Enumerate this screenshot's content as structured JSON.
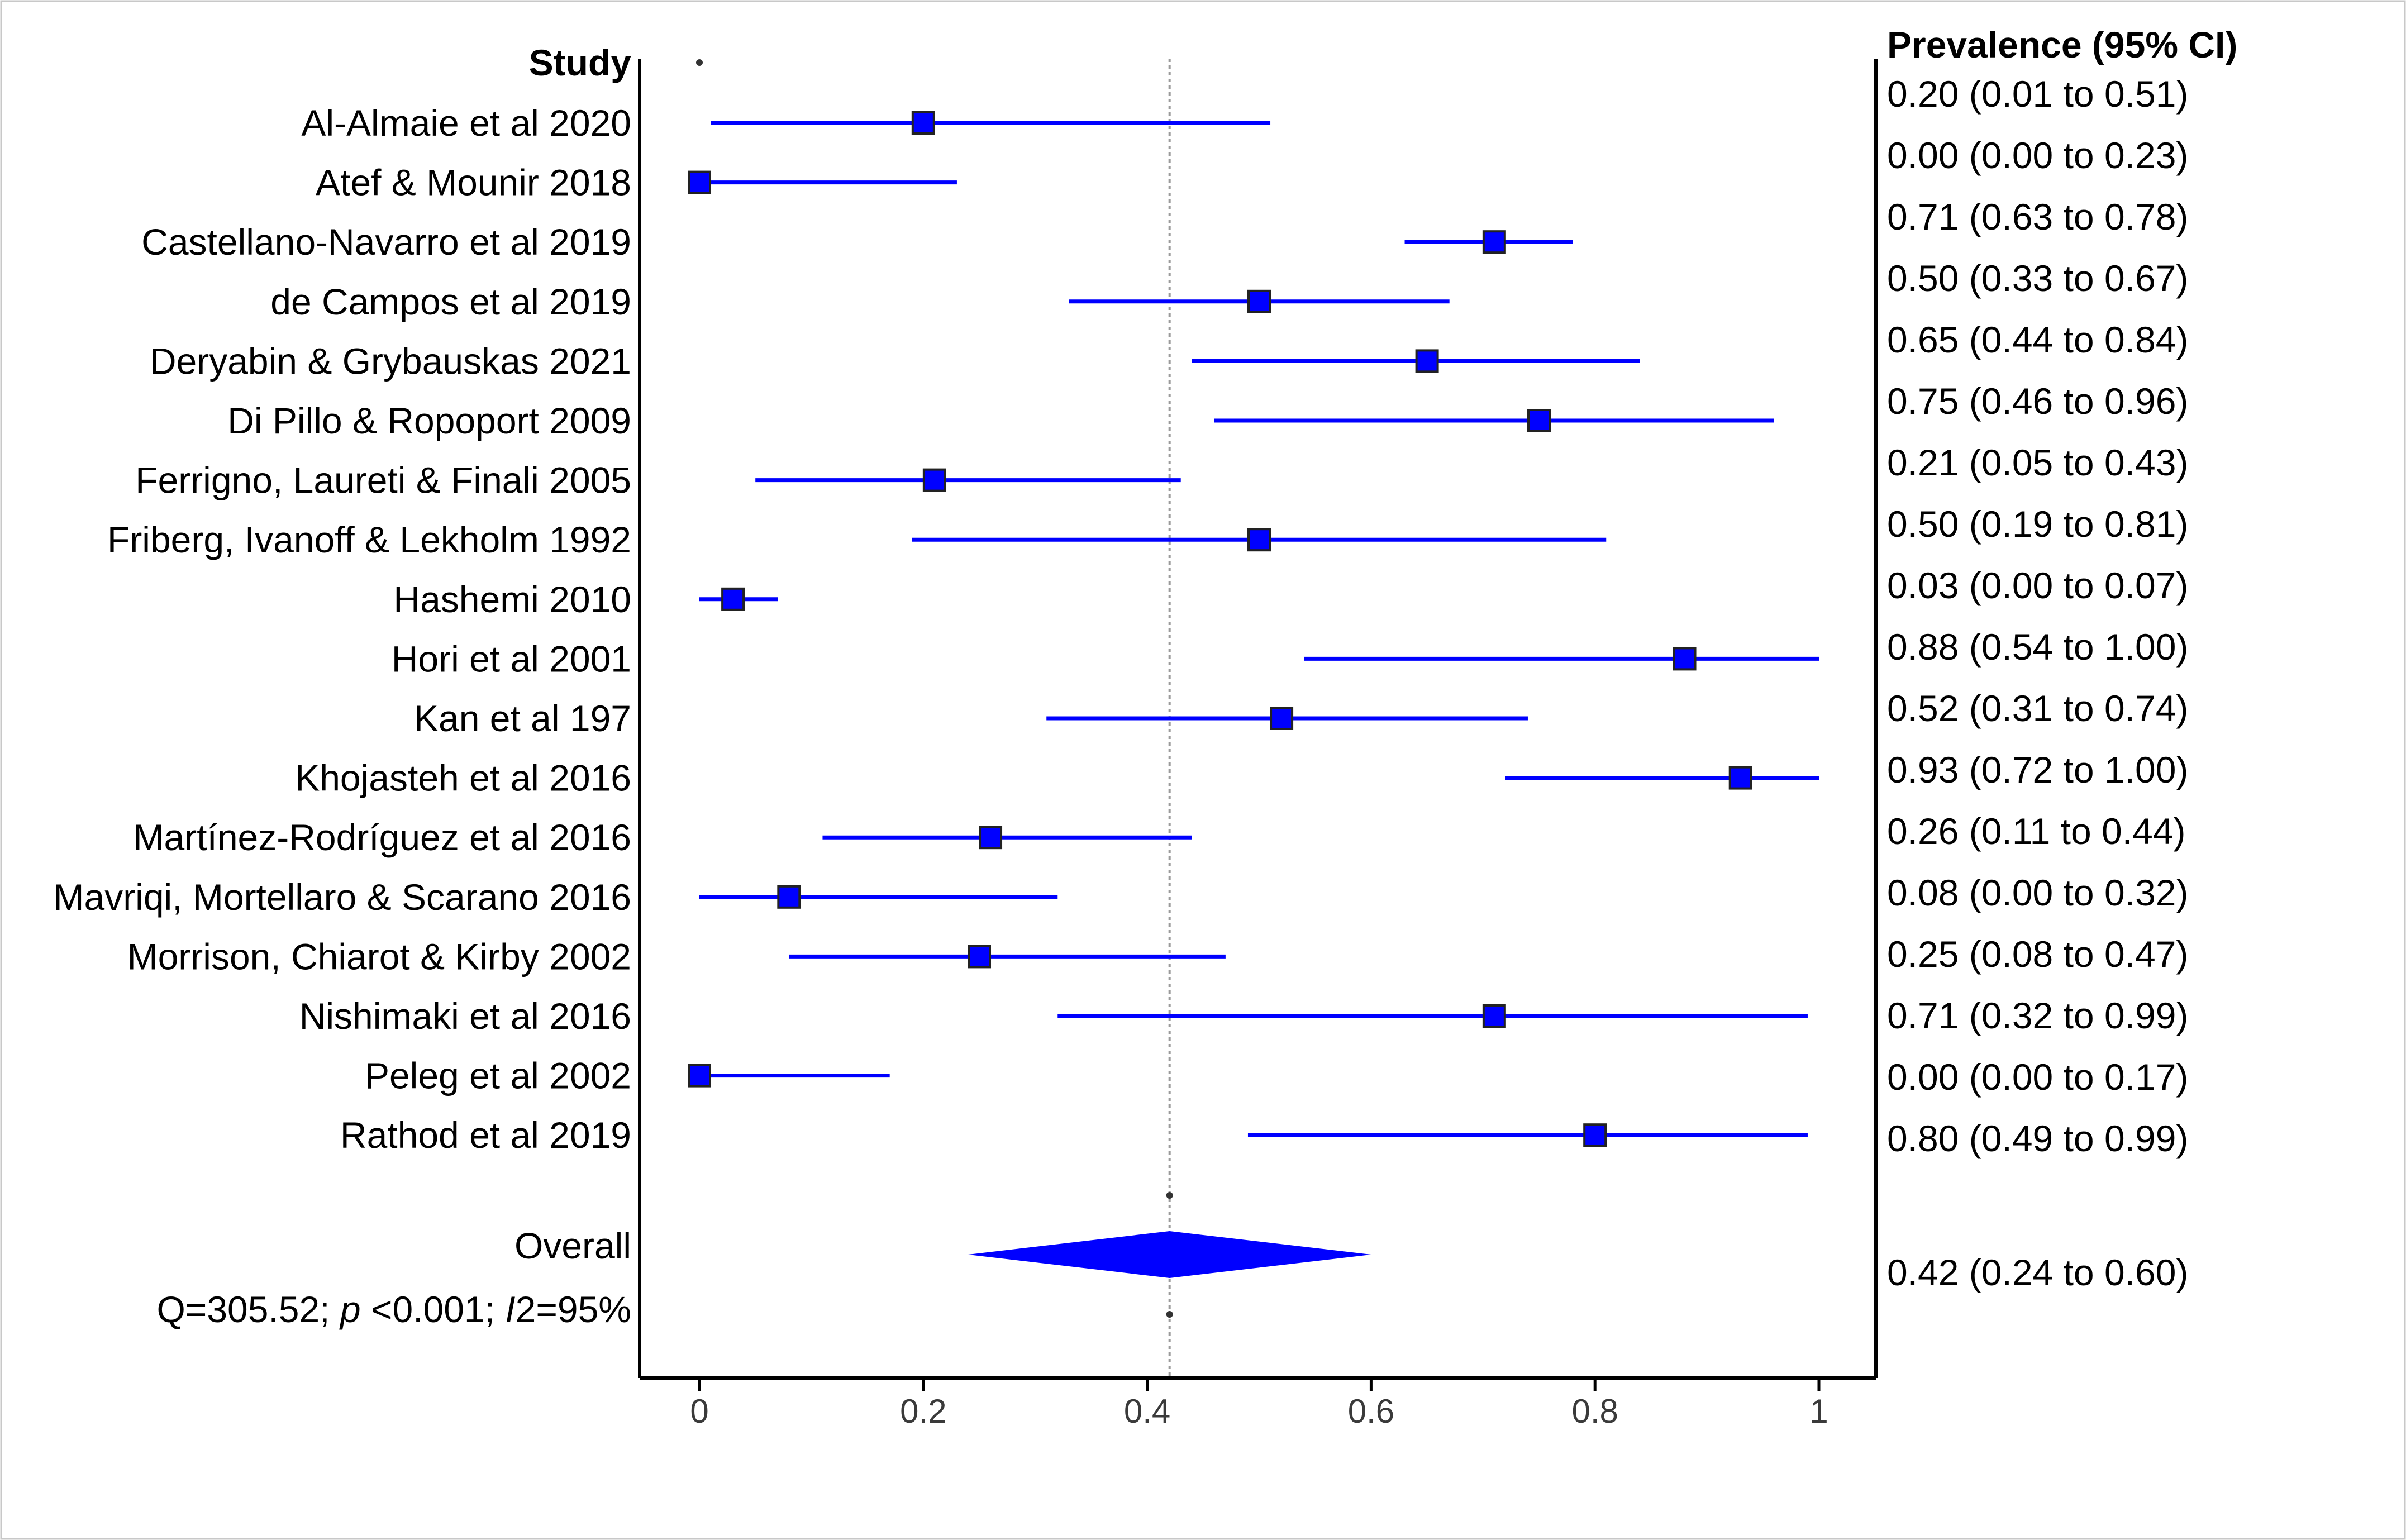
{
  "chart_data": {
    "type": "forest",
    "study_header": "Study",
    "ci_header": "Prevalence (95% CI)",
    "xlim": [
      0,
      1
    ],
    "x_ticks": [
      0,
      0.2,
      0.4,
      0.6,
      0.8,
      1
    ],
    "x_tick_labels": [
      "0",
      "0.2",
      "0.4",
      "0.6",
      "0.8",
      "1"
    ],
    "reference_line": 0.42,
    "grid": false,
    "colors": {
      "marker": "#0000ff",
      "ci": "#0000ff",
      "diamond": "#0000ff"
    },
    "studies": [
      {
        "label": "Al-Almaie et al 2020",
        "estimate": 0.2,
        "lower": 0.01,
        "upper": 0.51,
        "ci_text": "0.20 (0.01 to 0.51)"
      },
      {
        "label": "Atef & Mounir 2018",
        "estimate": 0.0,
        "lower": 0.0,
        "upper": 0.23,
        "ci_text": "0.00 (0.00 to 0.23)"
      },
      {
        "label": "Castellano-Navarro et al 2019",
        "estimate": 0.71,
        "lower": 0.63,
        "upper": 0.78,
        "ci_text": "0.71 (0.63 to 0.78)"
      },
      {
        "label": "de Campos et al 2019",
        "estimate": 0.5,
        "lower": 0.33,
        "upper": 0.67,
        "ci_text": "0.50 (0.33 to 0.67)"
      },
      {
        "label": "Deryabin & Grybauskas 2021",
        "estimate": 0.65,
        "lower": 0.44,
        "upper": 0.84,
        "ci_text": "0.65 (0.44 to 0.84)"
      },
      {
        "label": "Di Pillo & Ropoport 2009",
        "estimate": 0.75,
        "lower": 0.46,
        "upper": 0.96,
        "ci_text": "0.75 (0.46 to 0.96)"
      },
      {
        "label": "Ferrigno, Laureti & Finali 2005",
        "estimate": 0.21,
        "lower": 0.05,
        "upper": 0.43,
        "ci_text": "0.21 (0.05 to 0.43)"
      },
      {
        "label": "Friberg, Ivanoff & Lekholm 1992",
        "estimate": 0.5,
        "lower": 0.19,
        "upper": 0.81,
        "ci_text": "0.50 (0.19 to 0.81)"
      },
      {
        "label": "Hashemi 2010",
        "estimate": 0.03,
        "lower": 0.0,
        "upper": 0.07,
        "ci_text": "0.03 (0.00 to 0.07)"
      },
      {
        "label": "Hori et al 2001",
        "estimate": 0.88,
        "lower": 0.54,
        "upper": 1.0,
        "ci_text": "0.88 (0.54 to 1.00)"
      },
      {
        "label": "Kan et al 197",
        "estimate": 0.52,
        "lower": 0.31,
        "upper": 0.74,
        "ci_text": "0.52 (0.31 to 0.74)"
      },
      {
        "label": "Khojasteh et al 2016",
        "estimate": 0.93,
        "lower": 0.72,
        "upper": 1.0,
        "ci_text": "0.93 (0.72 to 1.00)"
      },
      {
        "label": "Martínez-Rodríguez et al 2016",
        "estimate": 0.26,
        "lower": 0.11,
        "upper": 0.44,
        "ci_text": "0.26 (0.11 to 0.44)"
      },
      {
        "label": "Mavriqi, Mortellaro & Scarano 2016",
        "estimate": 0.08,
        "lower": 0.0,
        "upper": 0.32,
        "ci_text": "0.08 (0.00 to 0.32)"
      },
      {
        "label": "Morrison, Chiarot & Kirby 2002",
        "estimate": 0.25,
        "lower": 0.08,
        "upper": 0.47,
        "ci_text": "0.25 (0.08 to 0.47)"
      },
      {
        "label": "Nishimaki et al 2016",
        "estimate": 0.71,
        "lower": 0.32,
        "upper": 0.99,
        "ci_text": "0.71 (0.32 to 0.99)"
      },
      {
        "label": "Peleg et al 2002",
        "estimate": 0.0,
        "lower": 0.0,
        "upper": 0.17,
        "ci_text": "0.00 (0.00 to 0.17)"
      },
      {
        "label": "Rathod et al 2019",
        "estimate": 0.8,
        "lower": 0.49,
        "upper": 0.99,
        "ci_text": "0.80 (0.49 to 0.99)"
      }
    ],
    "overall": {
      "label": "Overall",
      "estimate": 0.42,
      "lower": 0.24,
      "upper": 0.6,
      "ci_text": "0.42 (0.24 to 0.60)"
    },
    "heterogeneity": {
      "q_text": "Q=305.52; ",
      "p_symbol": "p",
      "p_text": " <0.001; ",
      "i_symbol": "I",
      "i_text": "2=95%"
    }
  }
}
